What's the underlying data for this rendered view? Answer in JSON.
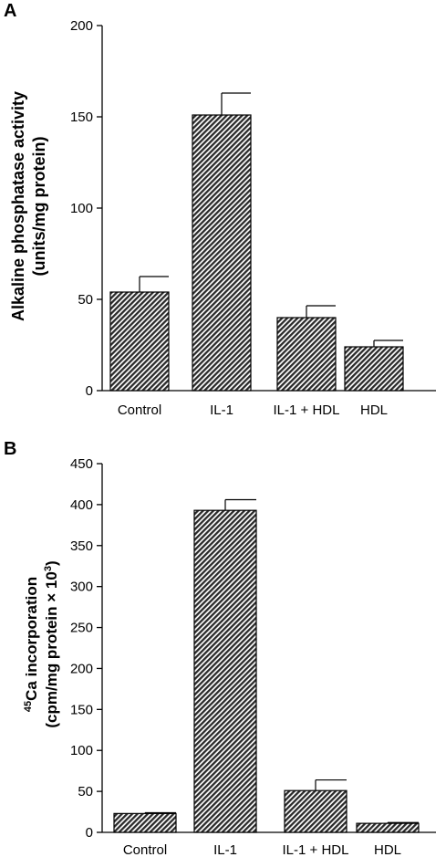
{
  "chart_data": [
    {
      "panel": "A",
      "type": "bar",
      "categories": [
        "Control",
        "IL-1",
        "IL-1 + HDL",
        "HDL"
      ],
      "values": [
        54,
        151,
        40,
        24
      ],
      "errors": [
        8.5,
        12,
        6.5,
        3.5
      ],
      "ylabel_line1": "Alkaline phosphatase activity",
      "ylabel_line2": "(units/mg protein)",
      "ylim": [
        0,
        200
      ],
      "yticks": [
        0,
        50,
        100,
        150,
        200
      ],
      "grid": false,
      "bar_pattern": "diagonal-hatch"
    },
    {
      "panel": "B",
      "type": "bar",
      "categories": [
        "Control",
        "IL-1",
        "IL-1 + HDL",
        "HDL"
      ],
      "values": [
        23,
        393,
        51,
        11
      ],
      "errors": [
        1,
        13,
        13,
        1
      ],
      "ylabel_line1": "45Ca incorporation",
      "ylabel_line1_superscript": "45",
      "ylabel_line1_text": "Ca incorporation",
      "ylabel_line2": "(cpm/mg protein × 10",
      "ylabel_line2_superscript": "3",
      "ylabel_line2_close": ")",
      "ylim": [
        0,
        450
      ],
      "yticks": [
        0,
        50,
        100,
        150,
        200,
        250,
        300,
        350,
        400,
        450
      ],
      "grid": false,
      "bar_pattern": "diagonal-hatch"
    }
  ]
}
